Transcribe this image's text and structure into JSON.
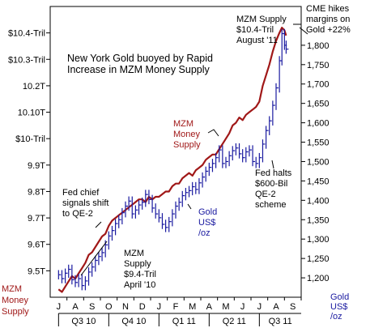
{
  "chart_data": {
    "type": "line",
    "title": "New York Gold buoyed by Rapid Increase in MZM Money Supply",
    "title_lines": [
      "New York Gold buoyed by Rapid",
      "Increase in MZM Money Supply"
    ],
    "grid": false,
    "x_months": [
      "J",
      "A",
      "S",
      "O",
      "N",
      "D",
      "J",
      "F",
      "M",
      "A",
      "M",
      "J",
      "J",
      "A",
      "S"
    ],
    "x_quarters": [
      "Q3 10",
      "Q4 10",
      "Q1 11",
      "Q2 11",
      "Q3 11"
    ],
    "left_axis": {
      "label_lines": [
        "MZM",
        "Money",
        "Supply"
      ],
      "range": [
        9.4,
        10.5
      ],
      "ticks": [
        {
          "value": 9.5,
          "label": "9.5T"
        },
        {
          "value": 9.6,
          "label": "9.6T"
        },
        {
          "value": 9.7,
          "label": "9.7T"
        },
        {
          "value": 9.8,
          "label": "9.8T"
        },
        {
          "value": 9.9,
          "label": "9.9T"
        },
        {
          "value": 10.0,
          "label": "$10-Tril"
        },
        {
          "value": 10.1,
          "label": "10.10T"
        },
        {
          "value": 10.2,
          "label": "10.2T"
        },
        {
          "value": 10.3,
          "label": "$10.3-Tril"
        },
        {
          "value": 10.4,
          "label": "$10.4-Tril"
        }
      ]
    },
    "right_axis": {
      "label_lines": [
        "Gold",
        "US$",
        "/oz"
      ],
      "range": [
        1150,
        1900
      ],
      "ticks": [
        {
          "value": 1200,
          "label": "1,200"
        },
        {
          "value": 1250,
          "label": "1,250"
        },
        {
          "value": 1300,
          "label": "1,300"
        },
        {
          "value": 1350,
          "label": "1,350"
        },
        {
          "value": 1400,
          "label": "1,400"
        },
        {
          "value": 1450,
          "label": "1,450"
        },
        {
          "value": 1500,
          "label": "1,500"
        },
        {
          "value": 1550,
          "label": "1,550"
        },
        {
          "value": 1600,
          "label": "1,600"
        },
        {
          "value": 1650,
          "label": "1,650"
        },
        {
          "value": 1700,
          "label": "1,700"
        },
        {
          "value": 1750,
          "label": "1,750"
        },
        {
          "value": 1800,
          "label": "1,800"
        }
      ]
    },
    "series": [
      {
        "name": "MZM Money Supply",
        "color": "#a01818",
        "axis": "left",
        "points": [
          [
            0.0,
            9.43
          ],
          [
            0.2,
            9.42
          ],
          [
            0.4,
            9.44
          ],
          [
            0.6,
            9.46
          ],
          [
            0.8,
            9.48
          ],
          [
            1.0,
            9.47
          ],
          [
            1.2,
            9.49
          ],
          [
            1.4,
            9.51
          ],
          [
            1.6,
            9.53
          ],
          [
            1.8,
            9.56
          ],
          [
            2.0,
            9.57
          ],
          [
            2.2,
            9.59
          ],
          [
            2.4,
            9.61
          ],
          [
            2.6,
            9.63
          ],
          [
            2.8,
            9.64
          ],
          [
            3.0,
            9.67
          ],
          [
            3.2,
            9.69
          ],
          [
            3.4,
            9.7
          ],
          [
            3.6,
            9.71
          ],
          [
            3.8,
            9.72
          ],
          [
            4.0,
            9.73
          ],
          [
            4.2,
            9.74
          ],
          [
            4.4,
            9.75
          ],
          [
            4.6,
            9.76
          ],
          [
            4.8,
            9.77
          ],
          [
            5.0,
            9.77
          ],
          [
            5.2,
            9.76
          ],
          [
            5.4,
            9.78
          ],
          [
            5.6,
            9.77
          ],
          [
            5.8,
            9.78
          ],
          [
            6.0,
            9.78
          ],
          [
            6.2,
            9.79
          ],
          [
            6.4,
            9.8
          ],
          [
            6.6,
            9.8
          ],
          [
            6.8,
            9.82
          ],
          [
            7.0,
            9.83
          ],
          [
            7.2,
            9.83
          ],
          [
            7.4,
            9.85
          ],
          [
            7.6,
            9.86
          ],
          [
            7.8,
            9.87
          ],
          [
            8.0,
            9.86
          ],
          [
            8.2,
            9.88
          ],
          [
            8.4,
            9.89
          ],
          [
            8.6,
            9.9
          ],
          [
            8.8,
            9.92
          ],
          [
            9.0,
            9.93
          ],
          [
            9.2,
            9.94
          ],
          [
            9.4,
            9.94
          ],
          [
            9.6,
            9.96
          ],
          [
            9.8,
            9.98
          ],
          [
            10.0,
            10.0
          ],
          [
            10.2,
            10.02
          ],
          [
            10.4,
            10.05
          ],
          [
            10.6,
            10.06
          ],
          [
            10.8,
            10.08
          ],
          [
            11.0,
            10.07
          ],
          [
            11.2,
            10.09
          ],
          [
            11.4,
            10.1
          ],
          [
            11.6,
            10.11
          ],
          [
            11.8,
            10.12
          ],
          [
            12.0,
            10.14
          ],
          [
            12.2,
            10.2
          ],
          [
            12.4,
            10.24
          ],
          [
            12.6,
            10.28
          ],
          [
            12.8,
            10.33
          ],
          [
            13.0,
            10.37
          ],
          [
            13.2,
            10.4
          ],
          [
            13.35,
            10.42
          ],
          [
            13.5,
            10.41
          ],
          [
            13.6,
            10.39
          ]
        ]
      },
      {
        "name": "Gold US$/oz",
        "color": "#1a1aa0",
        "axis": "right",
        "points": [
          [
            0.0,
            1208
          ],
          [
            0.2,
            1198
          ],
          [
            0.4,
            1212
          ],
          [
            0.6,
            1222
          ],
          [
            0.8,
            1195
          ],
          [
            1.0,
            1188
          ],
          [
            1.2,
            1198
          ],
          [
            1.4,
            1180
          ],
          [
            1.6,
            1192
          ],
          [
            1.8,
            1215
          ],
          [
            2.0,
            1228
          ],
          [
            2.2,
            1245
          ],
          [
            2.4,
            1255
          ],
          [
            2.6,
            1265
          ],
          [
            2.8,
            1285
          ],
          [
            3.0,
            1308
          ],
          [
            3.2,
            1322
          ],
          [
            3.4,
            1340
          ],
          [
            3.6,
            1350
          ],
          [
            3.8,
            1368
          ],
          [
            4.0,
            1385
          ],
          [
            4.2,
            1398
          ],
          [
            4.4,
            1365
          ],
          [
            4.6,
            1375
          ],
          [
            4.8,
            1388
          ],
          [
            5.0,
            1395
          ],
          [
            5.2,
            1415
          ],
          [
            5.4,
            1402
          ],
          [
            5.6,
            1380
          ],
          [
            5.8,
            1365
          ],
          [
            6.0,
            1355
          ],
          [
            6.2,
            1338
          ],
          [
            6.4,
            1330
          ],
          [
            6.6,
            1345
          ],
          [
            6.8,
            1365
          ],
          [
            7.0,
            1385
          ],
          [
            7.2,
            1395
          ],
          [
            7.4,
            1412
          ],
          [
            7.6,
            1420
          ],
          [
            7.8,
            1425
          ],
          [
            8.0,
            1435
          ],
          [
            8.2,
            1428
          ],
          [
            8.4,
            1445
          ],
          [
            8.6,
            1460
          ],
          [
            8.8,
            1475
          ],
          [
            9.0,
            1485
          ],
          [
            9.2,
            1495
          ],
          [
            9.4,
            1510
          ],
          [
            9.6,
            1530
          ],
          [
            9.8,
            1495
          ],
          [
            10.0,
            1500
          ],
          [
            10.2,
            1515
          ],
          [
            10.4,
            1528
          ],
          [
            10.6,
            1535
          ],
          [
            10.8,
            1520
          ],
          [
            11.0,
            1510
          ],
          [
            11.2,
            1525
          ],
          [
            11.4,
            1530
          ],
          [
            11.6,
            1500
          ],
          [
            11.8,
            1495
          ],
          [
            12.0,
            1510
          ],
          [
            12.2,
            1545
          ],
          [
            12.4,
            1580
          ],
          [
            12.6,
            1605
          ],
          [
            12.8,
            1645
          ],
          [
            13.0,
            1690
          ],
          [
            13.2,
            1760
          ],
          [
            13.35,
            1830
          ],
          [
            13.5,
            1800
          ],
          [
            13.6,
            1790
          ]
        ]
      }
    ],
    "annotations": [
      {
        "id": "mzm-peak",
        "lines": [
          "MZM Supply",
          "$10.4-Tril",
          "August '11"
        ],
        "color": "#000000"
      },
      {
        "id": "cme",
        "lines": [
          "CME hikes",
          "margins on",
          "Gold +22%"
        ],
        "color": "#000000"
      },
      {
        "id": "fed-chief",
        "lines": [
          "Fed chief",
          "signals shift",
          "to QE-2"
        ],
        "color": "#000000"
      },
      {
        "id": "mzm-label",
        "lines": [
          "MZM",
          "Money",
          "Supply"
        ],
        "color": "#a01818"
      },
      {
        "id": "gold-label",
        "lines": [
          "Gold",
          "US$",
          "/oz"
        ],
        "color": "#1a1aa0"
      },
      {
        "id": "fed-halts",
        "lines": [
          "Fed halts",
          "$600-Bil",
          "QE-2",
          "scheme"
        ],
        "color": "#000000"
      },
      {
        "id": "mzm-april",
        "lines": [
          "MZM",
          "Supply",
          "$9.4-Tril",
          "April '10"
        ],
        "color": "#000000"
      }
    ]
  }
}
